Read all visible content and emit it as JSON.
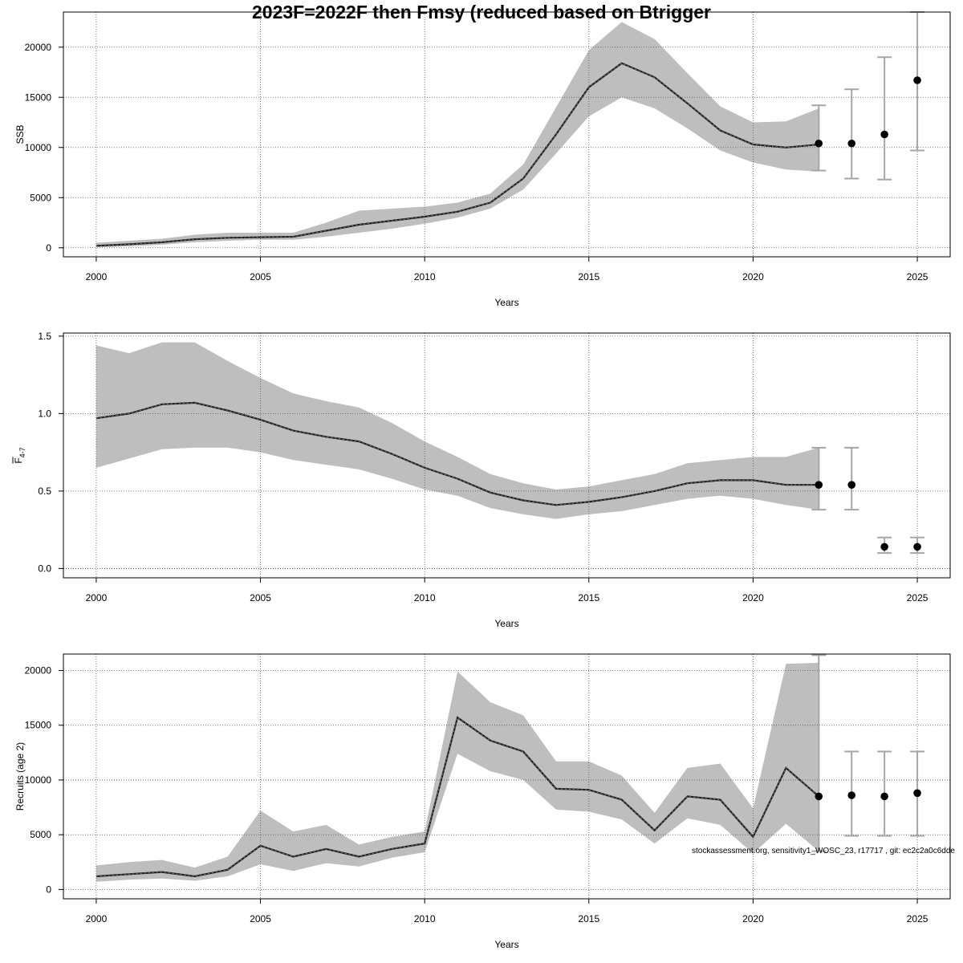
{
  "title": "2023F=2022F then Fmsy (reduced based on Btrigger",
  "credit": "stockassessment.org, sensitivity1_WOSC_23, r17717 , git: ec2c2a0c6dde",
  "colors": {
    "band": "#bebebe",
    "line": "#000000",
    "errorbar": "#a6a6a6",
    "grid": "#555555"
  },
  "chart_data": [
    {
      "type": "line",
      "name": "ssb",
      "xlabel": "Years",
      "ylabel": "SSB",
      "xlim": [
        1999.0,
        2026.0
      ],
      "ylim": [
        -900,
        23500
      ],
      "xticks": [
        2000,
        2005,
        2010,
        2015,
        2020,
        2025
      ],
      "yticks": [
        0,
        5000,
        10000,
        15000,
        20000
      ],
      "grid": true,
      "estimate": {
        "x": [
          2000,
          2001,
          2002,
          2003,
          2004,
          2005,
          2006,
          2007,
          2008,
          2009,
          2010,
          2011,
          2012,
          2013,
          2014,
          2015,
          2016,
          2017,
          2018,
          2019,
          2020,
          2021,
          2022
        ],
        "y": [
          200,
          350,
          550,
          850,
          1000,
          1050,
          1100,
          1700,
          2300,
          2700,
          3100,
          3600,
          4500,
          6900,
          11300,
          16000,
          18400,
          17000,
          14400,
          11700,
          10300,
          10000,
          10300
        ],
        "lower": [
          50,
          150,
          300,
          550,
          700,
          800,
          800,
          1100,
          1500,
          1900,
          2400,
          3000,
          3900,
          5800,
          9400,
          13100,
          15000,
          13900,
          11900,
          9700,
          8500,
          7800,
          7600
        ],
        "upper": [
          500,
          700,
          900,
          1300,
          1500,
          1500,
          1500,
          2500,
          3700,
          3900,
          4100,
          4500,
          5400,
          8300,
          14000,
          19700,
          22500,
          20800,
          17400,
          14100,
          12500,
          12600,
          13900
        ]
      },
      "forecast": {
        "x": [
          2022,
          2023,
          2024,
          2025
        ],
        "y": [
          10400,
          10400,
          11300,
          16700
        ],
        "lower": [
          7700,
          6900,
          6800,
          9700
        ],
        "upper": [
          14200,
          15800,
          19000,
          23500
        ]
      }
    },
    {
      "type": "line",
      "name": "fbar",
      "xlabel": "Years",
      "ylabel": "F4-7",
      "xlim": [
        1999.0,
        2026.0
      ],
      "ylim": [
        -0.06,
        1.52
      ],
      "xticks": [
        2000,
        2005,
        2010,
        2015,
        2020,
        2025
      ],
      "yticks": [
        0.0,
        0.5,
        1.0,
        1.5
      ],
      "grid": true,
      "estimate": {
        "x": [
          2000,
          2001,
          2002,
          2003,
          2004,
          2005,
          2006,
          2007,
          2008,
          2009,
          2010,
          2011,
          2012,
          2013,
          2014,
          2015,
          2016,
          2017,
          2018,
          2019,
          2020,
          2021,
          2022
        ],
        "y": [
          0.97,
          1.0,
          1.06,
          1.07,
          1.02,
          0.96,
          0.89,
          0.85,
          0.82,
          0.74,
          0.65,
          0.58,
          0.49,
          0.44,
          0.41,
          0.43,
          0.46,
          0.5,
          0.55,
          0.57,
          0.57,
          0.54,
          0.54
        ],
        "lower": [
          0.65,
          0.71,
          0.77,
          0.78,
          0.78,
          0.75,
          0.7,
          0.67,
          0.64,
          0.58,
          0.51,
          0.47,
          0.39,
          0.35,
          0.32,
          0.35,
          0.37,
          0.41,
          0.45,
          0.47,
          0.45,
          0.41,
          0.38
        ],
        "upper": [
          1.44,
          1.39,
          1.46,
          1.46,
          1.34,
          1.23,
          1.13,
          1.08,
          1.04,
          0.94,
          0.82,
          0.72,
          0.61,
          0.55,
          0.51,
          0.53,
          0.57,
          0.61,
          0.68,
          0.7,
          0.72,
          0.72,
          0.78
        ]
      },
      "forecast": {
        "x": [
          2022,
          2023,
          2024,
          2025
        ],
        "y": [
          0.54,
          0.54,
          0.14,
          0.14
        ],
        "lower": [
          0.38,
          0.38,
          0.1,
          0.1
        ],
        "upper": [
          0.78,
          0.78,
          0.2,
          0.2
        ]
      }
    },
    {
      "type": "line",
      "name": "recruits",
      "xlabel": "Years",
      "ylabel": "Recruits (age 2)",
      "xlim": [
        1999.0,
        2026.0
      ],
      "ylim": [
        -850,
        21500
      ],
      "xticks": [
        2000,
        2005,
        2010,
        2015,
        2020,
        2025
      ],
      "yticks": [
        0,
        5000,
        10000,
        15000,
        20000
      ],
      "grid": true,
      "estimate": {
        "x": [
          2000,
          2001,
          2002,
          2003,
          2004,
          2005,
          2006,
          2007,
          2008,
          2009,
          2010,
          2011,
          2012,
          2013,
          2014,
          2015,
          2016,
          2017,
          2018,
          2019,
          2020,
          2021,
          2022
        ],
        "y": [
          1200,
          1400,
          1600,
          1200,
          1800,
          4000,
          3000,
          3700,
          3000,
          3700,
          4200,
          15700,
          13600,
          12600,
          9200,
          9100,
          8200,
          5400,
          8500,
          8200,
          4800,
          11100,
          8500
        ],
        "lower": [
          700,
          900,
          1000,
          800,
          1200,
          2300,
          1700,
          2400,
          2100,
          2900,
          3400,
          12400,
          10800,
          10000,
          7300,
          7100,
          6400,
          4200,
          6500,
          5900,
          3300,
          6000,
          3500
        ],
        "upper": [
          2200,
          2500,
          2700,
          2000,
          3000,
          7200,
          5300,
          5900,
          4100,
          4800,
          5300,
          19900,
          17100,
          15900,
          11700,
          11700,
          10400,
          7000,
          11100,
          11500,
          7400,
          20600,
          20700
        ]
      },
      "forecast": {
        "x": [
          2022,
          2023,
          2024,
          2025
        ],
        "y": [
          8500,
          8600,
          8500,
          8800
        ],
        "lower": [
          3500,
          4900,
          4900,
          4900
        ],
        "upper": [
          21400,
          12600,
          12600,
          12600
        ]
      }
    }
  ]
}
